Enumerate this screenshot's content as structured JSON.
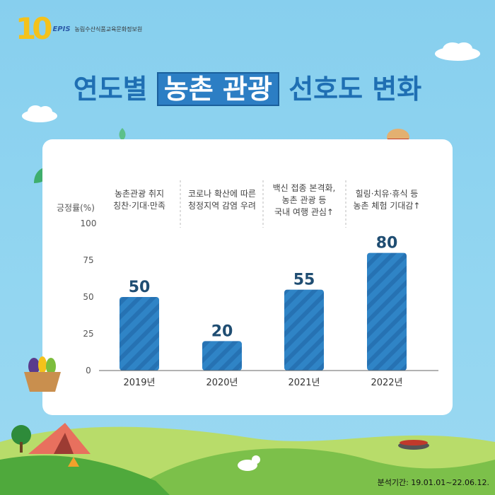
{
  "header": {
    "logo_number": "10",
    "logo_brand": "EPIS",
    "logo_org": "농림수산식품교육문화정보원"
  },
  "title": {
    "before": "연도별 ",
    "highlight": "농촌 관광",
    "after": " 선호도 변화"
  },
  "chart_data": {
    "type": "bar",
    "ylabel": "긍정률(%)",
    "ylim": [
      0,
      100
    ],
    "yticks": [
      0,
      25,
      50,
      75,
      100
    ],
    "categories": [
      "2019년",
      "2020년",
      "2021년",
      "2022년"
    ],
    "values": [
      50,
      20,
      55,
      80
    ],
    "data_labels": [
      "50",
      "20",
      "55",
      "80"
    ],
    "annotations": [
      [
        "농촌관광 취지",
        "칭찬·기대·만족"
      ],
      [
        "코로나 확산에 따른",
        "청정지역 감염 우려"
      ],
      [
        "백신 접종 본격화,",
        "농촌 관광 등",
        "국내 여행 관심↑"
      ],
      [
        "힐링·치유·휴식 등",
        "농촌 체험 기대감↑"
      ]
    ],
    "bar_color": "#2d7fc1",
    "grid": false
  },
  "footer": {
    "period": "분석기간: 19.01.01~22.06.12."
  }
}
